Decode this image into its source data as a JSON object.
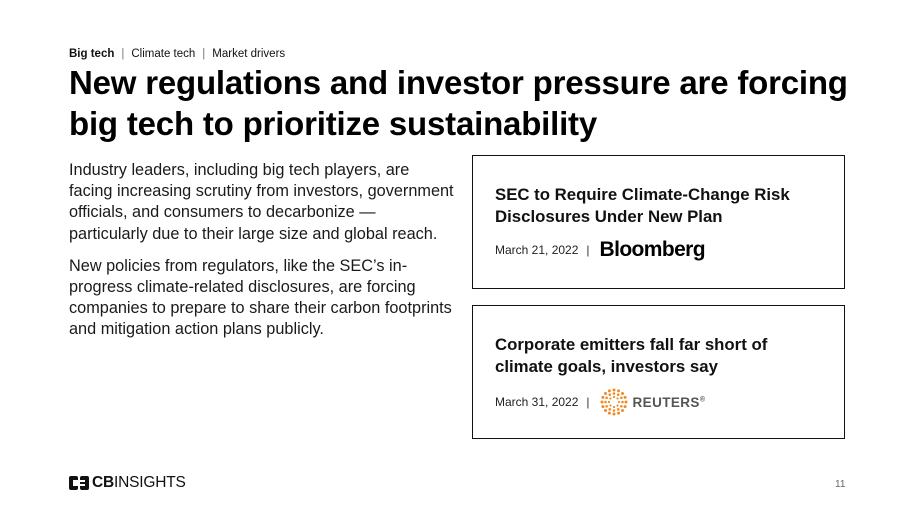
{
  "breadcrumb": {
    "items": [
      "Big tech",
      "Climate tech",
      "Market drivers"
    ],
    "separator": "|"
  },
  "title": "New regulations and investor pressure are forcing big tech to prioritize sustainability",
  "body": {
    "paragraph1": "Industry leaders, including big tech players, are facing increasing scrutiny from investors, government officials, and consumers to decarbonize — particularly due to their large size and global reach.",
    "paragraph2": "New policies from regulators, like the SEC’s in-progress climate-related disclosures, are forcing companies to prepare to share their carbon footprints and mitigation action plans publicly."
  },
  "cards": [
    {
      "headline": "SEC to Require Climate-Change Risk Disclosures Under New Plan",
      "date": "March 21, 2022",
      "separator": "|",
      "source": "Bloomberg",
      "source_icon": "bloomberg-logo"
    },
    {
      "headline": "Corporate emitters fall far short of climate goals, investors say",
      "date": "March 31, 2022",
      "separator": "|",
      "source": "REUTERS",
      "source_mark": "®",
      "source_icon": "reuters-logo",
      "source_color": "#f08a24"
    }
  ],
  "footer": {
    "logo_bold": "CB",
    "logo_rest": "INSIGHTS",
    "logo_icon": "cb-insights-logo"
  },
  "page_number": "11"
}
